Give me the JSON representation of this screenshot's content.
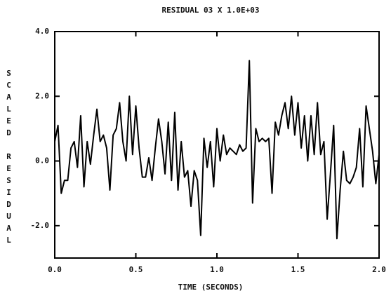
{
  "chart_data": {
    "type": "line",
    "title": "RESIDUAL 03 X 1.0E+03",
    "x_label": "TIME (SECONDS)",
    "y_label": "SCALED RESIDUAL",
    "xlim": [
      0,
      2
    ],
    "ylim": [
      -3,
      4
    ],
    "xticks": [
      {
        "value": 0,
        "label": "0.0"
      },
      {
        "value": 0.5,
        "label": "0.5"
      },
      {
        "value": 1,
        "label": "1.0"
      },
      {
        "value": 1.5,
        "label": "1.5"
      },
      {
        "value": 2,
        "label": "2.0"
      }
    ],
    "yticks": [
      {
        "value": 4,
        "label": "4.0"
      },
      {
        "value": 2,
        "label": "2.0"
      },
      {
        "value": 0,
        "label": "0.0"
      },
      {
        "value": -2,
        "label": "-2.0"
      }
    ],
    "x": [
      0,
      0.02,
      0.04,
      0.06,
      0.08,
      0.1,
      0.12,
      0.14,
      0.16,
      0.18,
      0.2,
      0.22,
      0.24,
      0.26,
      0.28,
      0.3,
      0.32,
      0.34,
      0.36,
      0.38,
      0.4,
      0.42,
      0.44,
      0.46,
      0.48,
      0.5,
      0.52,
      0.54,
      0.56,
      0.58,
      0.6,
      0.62,
      0.64,
      0.66,
      0.68,
      0.7,
      0.72,
      0.74,
      0.76,
      0.78,
      0.8,
      0.82,
      0.84,
      0.86,
      0.88,
      0.9,
      0.92,
      0.94,
      0.96,
      0.98,
      1,
      1.02,
      1.04,
      1.06,
      1.08,
      1.1,
      1.12,
      1.14,
      1.16,
      1.18,
      1.2,
      1.22,
      1.24,
      1.26,
      1.28,
      1.3,
      1.32,
      1.34,
      1.36,
      1.38,
      1.4,
      1.42,
      1.44,
      1.46,
      1.48,
      1.5,
      1.52,
      1.54,
      1.56,
      1.58,
      1.6,
      1.62,
      1.64,
      1.66,
      1.68,
      1.7,
      1.72,
      1.74,
      1.76,
      1.78,
      1.8,
      1.82,
      1.84,
      1.86,
      1.88,
      1.9,
      1.92,
      1.94,
      1.96,
      1.98,
      2
    ],
    "series": [
      {
        "color": "#000000",
        "values": [
          0.6,
          1.1,
          -1.0,
          -0.6,
          -0.6,
          0.4,
          0.6,
          -0.2,
          1.4,
          -0.8,
          0.6,
          -0.1,
          0.8,
          1.6,
          0.6,
          0.8,
          0.4,
          -0.9,
          0.8,
          1.0,
          1.8,
          0.6,
          0.0,
          2.0,
          0.2,
          1.7,
          0.4,
          -0.5,
          -0.5,
          0.1,
          -0.6,
          0.4,
          1.3,
          0.6,
          -0.4,
          1.2,
          -0.6,
          1.5,
          -0.9,
          0.6,
          -0.5,
          -0.3,
          -1.4,
          -0.3,
          -0.6,
          -2.3,
          0.7,
          -0.2,
          0.6,
          -0.8,
          1.0,
          0.0,
          0.8,
          0.2,
          0.4,
          0.3,
          0.2,
          0.5,
          0.3,
          0.4,
          3.1,
          -1.3,
          1.0,
          0.6,
          0.7,
          0.6,
          0.7,
          -1.0,
          1.2,
          0.8,
          1.4,
          1.8,
          1.0,
          2.0,
          0.8,
          1.8,
          0.4,
          1.4,
          0.0,
          1.4,
          0.2,
          1.8,
          0.2,
          0.6,
          -1.8,
          -0.4,
          1.1,
          -2.4,
          -0.9,
          0.3,
          -0.6,
          -0.7,
          -0.5,
          -0.2,
          1.0,
          -0.8,
          1.7,
          1.0,
          0.3,
          -0.7,
          0.2
        ]
      }
    ]
  }
}
